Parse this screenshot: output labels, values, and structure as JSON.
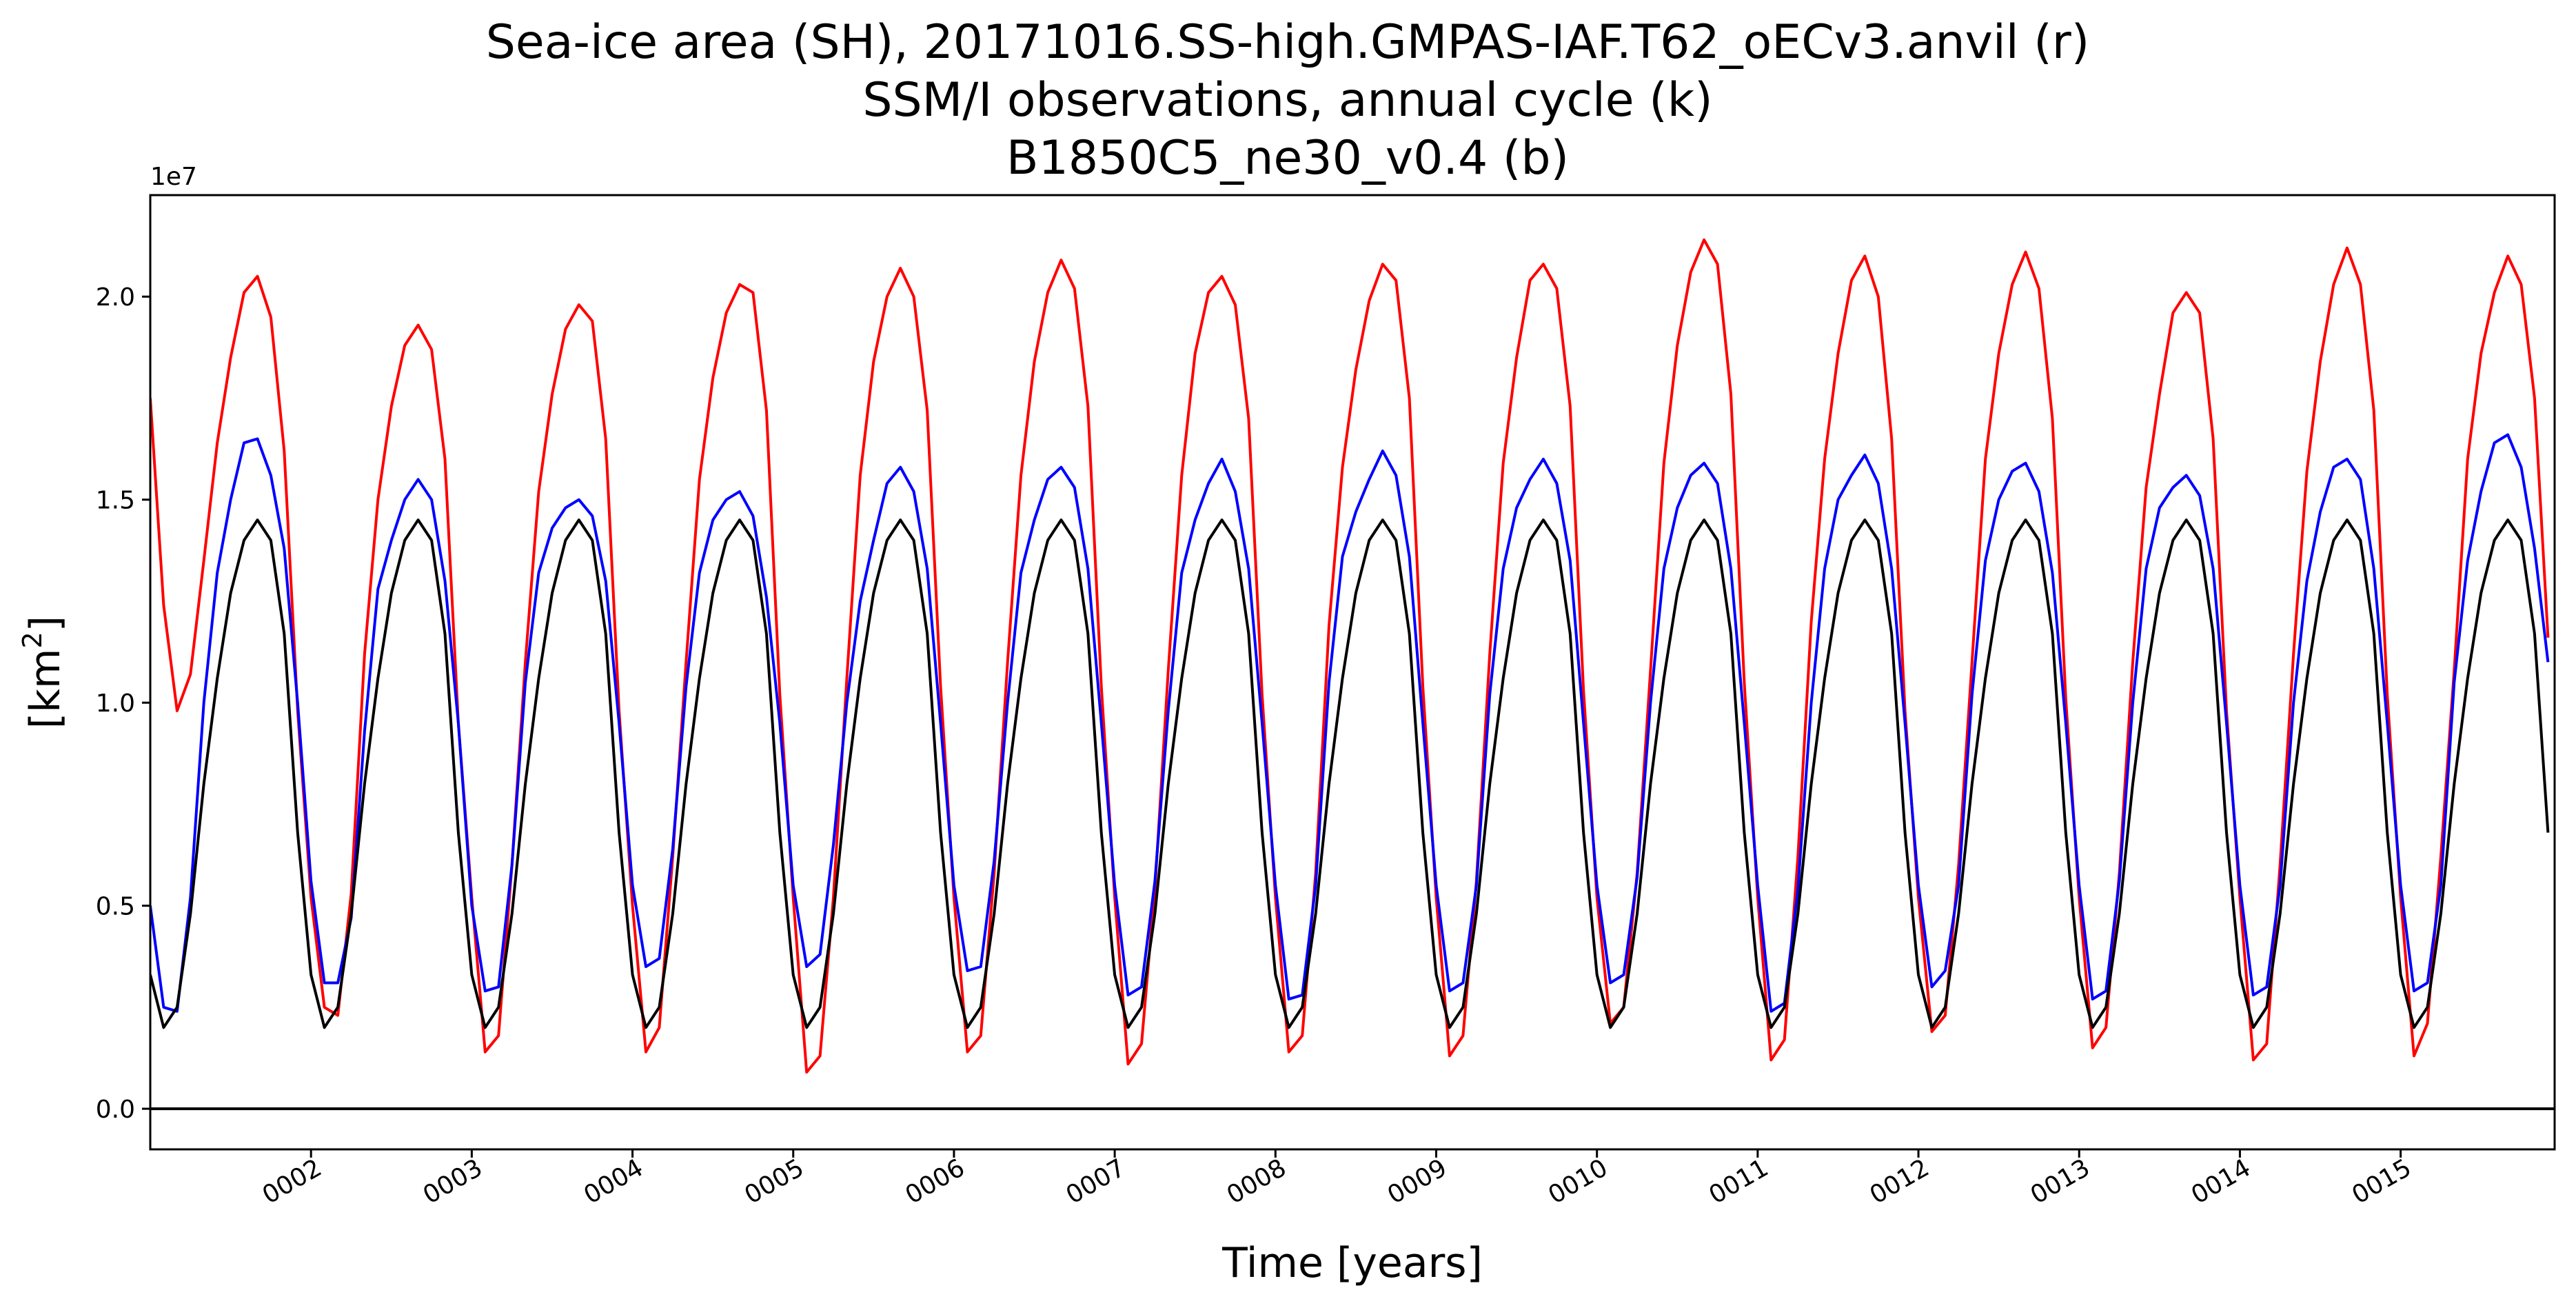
{
  "chart_data": {
    "type": "line",
    "title_lines": [
      "Sea-ice area (SH), 20171016.SS-high.GMPAS-IAF.T62_oECv3.anvil (r)",
      "SSM/I observations, annual cycle (k)",
      "B1850C5_ne30_v0.4 (b)"
    ],
    "xlabel": "Time [years]",
    "ylabel_base": "[km",
    "ylabel_sup": "2",
    "ylabel_end": "]",
    "y_offset_label": "1e7",
    "xlim": [
      1.0,
      15.958
    ],
    "ylim": [
      -0.1,
      2.25
    ],
    "y_units": "1e7 km^2",
    "yticks": [
      0.0,
      0.5,
      1.0,
      1.5,
      2.0
    ],
    "ytick_labels": [
      "0.0",
      "0.5",
      "1.0",
      "1.5",
      "2.0"
    ],
    "xticks": [
      2,
      3,
      4,
      5,
      6,
      7,
      8,
      9,
      10,
      11,
      12,
      13,
      14,
      15
    ],
    "xtick_labels": [
      "0002",
      "0003",
      "0004",
      "0005",
      "0006",
      "0007",
      "0008",
      "0009",
      "0010",
      "0011",
      "0012",
      "0013",
      "0014",
      "0015"
    ],
    "zero_line": 0.0,
    "grid": false,
    "legend": "none",
    "series": [
      {
        "color": "#ff0000",
        "monthly_cycle_by_year": [
          [
            1.75,
            1.24,
            0.98,
            1.07,
            1.35,
            1.64,
            1.85,
            2.01,
            2.05,
            1.95,
            1.62,
            0.98
          ],
          [
            0.52,
            0.25,
            0.23,
            0.53,
            1.12,
            1.5,
            1.73,
            1.88,
            1.93,
            1.87,
            1.6,
            0.95
          ],
          [
            0.52,
            0.14,
            0.18,
            0.6,
            1.1,
            1.52,
            1.76,
            1.92,
            1.98,
            1.94,
            1.65,
            0.98
          ],
          [
            0.5,
            0.14,
            0.2,
            0.62,
            1.1,
            1.55,
            1.8,
            1.96,
            2.03,
            2.01,
            1.72,
            1.02
          ],
          [
            0.52,
            0.09,
            0.13,
            0.52,
            1.06,
            1.56,
            1.84,
            2.0,
            2.07,
            2.0,
            1.72,
            1.04
          ],
          [
            0.52,
            0.14,
            0.18,
            0.58,
            1.1,
            1.56,
            1.84,
            2.01,
            2.09,
            2.02,
            1.73,
            1.04
          ],
          [
            0.52,
            0.11,
            0.16,
            0.54,
            1.08,
            1.56,
            1.86,
            2.01,
            2.05,
            1.98,
            1.7,
            1.02
          ],
          [
            0.52,
            0.14,
            0.18,
            0.58,
            1.19,
            1.58,
            1.82,
            1.99,
            2.08,
            2.04,
            1.75,
            1.04
          ],
          [
            0.52,
            0.13,
            0.18,
            0.56,
            1.12,
            1.59,
            1.85,
            2.04,
            2.08,
            2.02,
            1.73,
            1.03
          ],
          [
            0.52,
            0.21,
            0.25,
            0.58,
            1.08,
            1.59,
            1.88,
            2.06,
            2.14,
            2.08,
            1.76,
            1.05
          ],
          [
            0.52,
            0.12,
            0.17,
            0.62,
            1.2,
            1.6,
            1.86,
            2.04,
            2.1,
            2.0,
            1.65,
            0.98
          ],
          [
            0.52,
            0.19,
            0.23,
            0.6,
            1.1,
            1.6,
            1.86,
            2.03,
            2.11,
            2.02,
            1.7,
            1.01
          ],
          [
            0.52,
            0.15,
            0.2,
            0.58,
            1.1,
            1.53,
            1.76,
            1.96,
            2.01,
            1.96,
            1.65,
            0.98
          ],
          [
            0.52,
            0.12,
            0.16,
            0.6,
            1.12,
            1.57,
            1.84,
            2.03,
            2.12,
            2.03,
            1.72,
            1.02
          ],
          [
            0.52,
            0.13,
            0.21,
            0.62,
            1.08,
            1.6,
            1.86,
            2.01,
            2.1,
            2.03,
            1.75,
            1.16
          ]
        ]
      },
      {
        "color": "#0000ff",
        "monthly_cycle_by_year": [
          [
            0.5,
            0.25,
            0.24,
            0.52,
            1.0,
            1.32,
            1.5,
            1.64,
            1.65,
            1.56,
            1.38,
            1.0
          ],
          [
            0.56,
            0.31,
            0.31,
            0.47,
            0.93,
            1.28,
            1.4,
            1.5,
            1.55,
            1.5,
            1.3,
            0.95
          ],
          [
            0.5,
            0.29,
            0.3,
            0.6,
            1.05,
            1.32,
            1.43,
            1.48,
            1.5,
            1.46,
            1.3,
            0.95
          ],
          [
            0.55,
            0.35,
            0.37,
            0.64,
            1.04,
            1.32,
            1.45,
            1.5,
            1.52,
            1.46,
            1.26,
            0.95
          ],
          [
            0.55,
            0.35,
            0.38,
            0.65,
            1.0,
            1.25,
            1.4,
            1.54,
            1.58,
            1.52,
            1.33,
            0.95
          ],
          [
            0.55,
            0.34,
            0.35,
            0.61,
            1.0,
            1.32,
            1.45,
            1.55,
            1.58,
            1.53,
            1.33,
            0.95
          ],
          [
            0.55,
            0.28,
            0.3,
            0.56,
            0.98,
            1.32,
            1.45,
            1.54,
            1.6,
            1.52,
            1.33,
            0.95
          ],
          [
            0.55,
            0.27,
            0.28,
            0.55,
            1.05,
            1.36,
            1.47,
            1.55,
            1.62,
            1.56,
            1.36,
            0.95
          ],
          [
            0.55,
            0.29,
            0.31,
            0.55,
            1.02,
            1.33,
            1.48,
            1.55,
            1.6,
            1.54,
            1.35,
            0.95
          ],
          [
            0.55,
            0.31,
            0.33,
            0.57,
            1.0,
            1.33,
            1.48,
            1.56,
            1.59,
            1.54,
            1.33,
            0.95
          ],
          [
            0.55,
            0.24,
            0.26,
            0.54,
            1.0,
            1.33,
            1.5,
            1.56,
            1.61,
            1.54,
            1.33,
            0.95
          ],
          [
            0.55,
            0.3,
            0.34,
            0.55,
            1.02,
            1.35,
            1.5,
            1.57,
            1.59,
            1.52,
            1.32,
            0.95
          ],
          [
            0.55,
            0.27,
            0.29,
            0.56,
            1.0,
            1.33,
            1.48,
            1.53,
            1.56,
            1.51,
            1.33,
            0.95
          ],
          [
            0.55,
            0.28,
            0.3,
            0.55,
            1.0,
            1.3,
            1.47,
            1.58,
            1.6,
            1.55,
            1.33,
            0.95
          ],
          [
            0.55,
            0.29,
            0.31,
            0.55,
            1.05,
            1.35,
            1.52,
            1.64,
            1.66,
            1.58,
            1.38,
            1.1
          ]
        ]
      },
      {
        "color": "#000000",
        "monthly_cycle_by_year": [
          [
            0.33,
            0.2,
            0.25,
            0.48,
            0.8,
            1.06,
            1.27,
            1.4,
            1.45,
            1.4,
            1.17,
            0.68
          ],
          [
            0.33,
            0.2,
            0.25,
            0.48,
            0.8,
            1.06,
            1.27,
            1.4,
            1.45,
            1.4,
            1.17,
            0.68
          ],
          [
            0.33,
            0.2,
            0.25,
            0.48,
            0.8,
            1.06,
            1.27,
            1.4,
            1.45,
            1.4,
            1.17,
            0.68
          ],
          [
            0.33,
            0.2,
            0.25,
            0.48,
            0.8,
            1.06,
            1.27,
            1.4,
            1.45,
            1.4,
            1.17,
            0.68
          ],
          [
            0.33,
            0.2,
            0.25,
            0.48,
            0.8,
            1.06,
            1.27,
            1.4,
            1.45,
            1.4,
            1.17,
            0.68
          ],
          [
            0.33,
            0.2,
            0.25,
            0.48,
            0.8,
            1.06,
            1.27,
            1.4,
            1.45,
            1.4,
            1.17,
            0.68
          ],
          [
            0.33,
            0.2,
            0.25,
            0.48,
            0.8,
            1.06,
            1.27,
            1.4,
            1.45,
            1.4,
            1.17,
            0.68
          ],
          [
            0.33,
            0.2,
            0.25,
            0.48,
            0.8,
            1.06,
            1.27,
            1.4,
            1.45,
            1.4,
            1.17,
            0.68
          ],
          [
            0.33,
            0.2,
            0.25,
            0.48,
            0.8,
            1.06,
            1.27,
            1.4,
            1.45,
            1.4,
            1.17,
            0.68
          ],
          [
            0.33,
            0.2,
            0.25,
            0.48,
            0.8,
            1.06,
            1.27,
            1.4,
            1.45,
            1.4,
            1.17,
            0.68
          ],
          [
            0.33,
            0.2,
            0.25,
            0.48,
            0.8,
            1.06,
            1.27,
            1.4,
            1.45,
            1.4,
            1.17,
            0.68
          ],
          [
            0.33,
            0.2,
            0.25,
            0.48,
            0.8,
            1.06,
            1.27,
            1.4,
            1.45,
            1.4,
            1.17,
            0.68
          ],
          [
            0.33,
            0.2,
            0.25,
            0.48,
            0.8,
            1.06,
            1.27,
            1.4,
            1.45,
            1.4,
            1.17,
            0.68
          ],
          [
            0.33,
            0.2,
            0.25,
            0.48,
            0.8,
            1.06,
            1.27,
            1.4,
            1.45,
            1.4,
            1.17,
            0.68
          ],
          [
            0.33,
            0.2,
            0.25,
            0.48,
            0.8,
            1.06,
            1.27,
            1.4,
            1.45,
            1.4,
            1.17,
            0.68
          ]
        ]
      }
    ]
  }
}
